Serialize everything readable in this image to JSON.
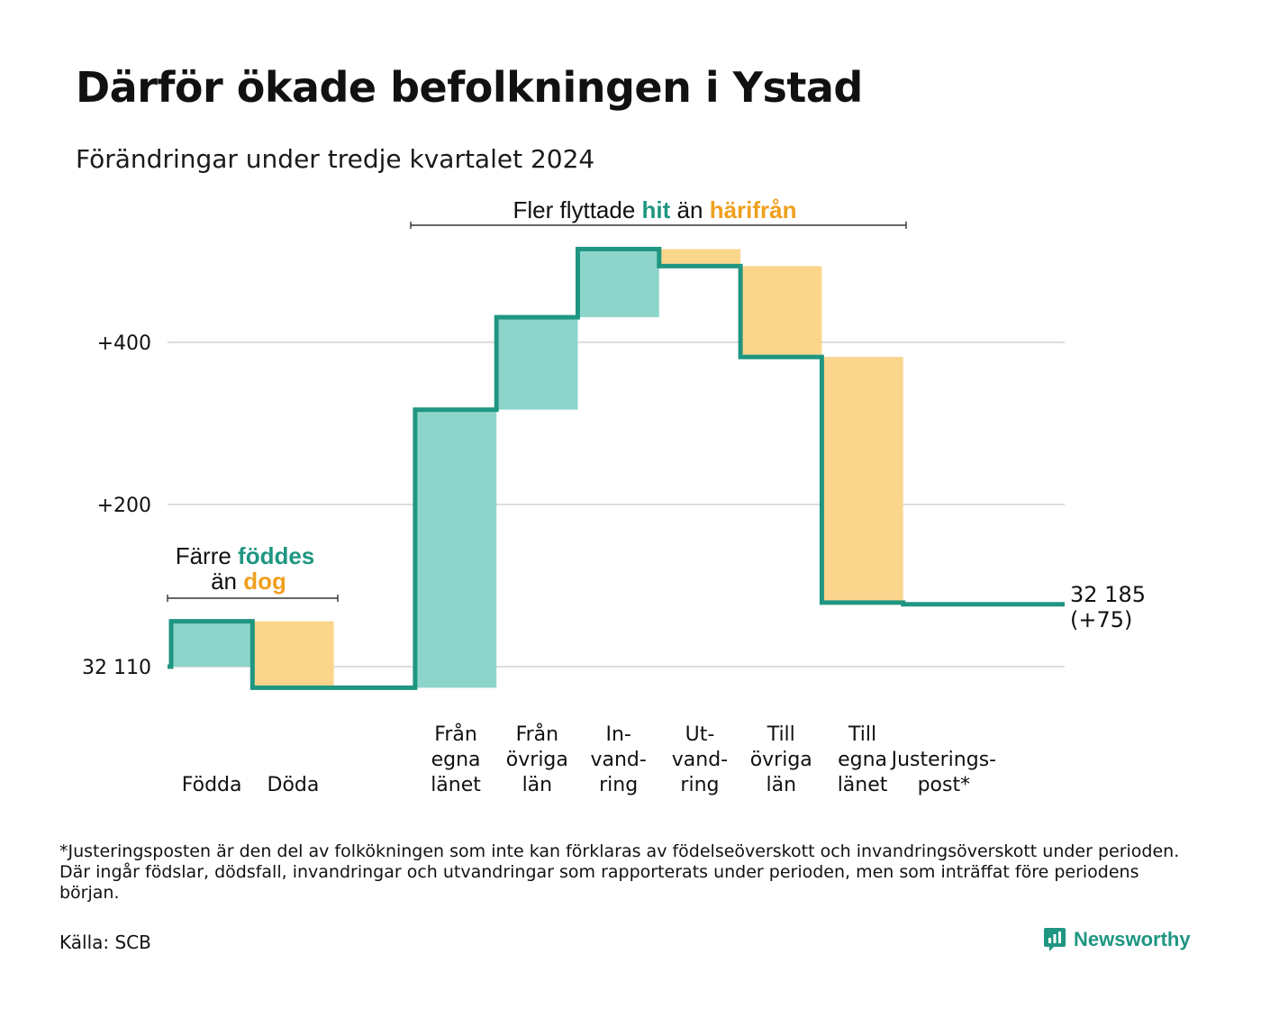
{
  "chart_data": {
    "type": "bar",
    "subtype": "waterfall",
    "title": "Därför ökade befolkningen i Ystad",
    "subtitle": "Förändringar under tredje kvartalet 2024",
    "baseline_label": "32 110",
    "ytick_labels": [
      "32 110",
      "+200",
      "+400"
    ],
    "yticks": [
      0,
      200,
      400
    ],
    "ylim": [
      -60,
      520
    ],
    "grid": true,
    "steps": [
      {
        "label_lines": [
          "Födda"
        ],
        "delta": 56,
        "kind": "pos"
      },
      {
        "label_lines": [
          "Döda"
        ],
        "delta": -82,
        "kind": "neg"
      },
      {
        "label_lines": [
          ""
        ],
        "delta": 0,
        "kind": "gap"
      },
      {
        "label_lines": [
          "Från",
          "egna",
          "länet"
        ],
        "delta": 343,
        "kind": "pos"
      },
      {
        "label_lines": [
          "Från",
          "övriga",
          "län"
        ],
        "delta": 114,
        "kind": "pos"
      },
      {
        "label_lines": [
          "In-",
          "vand-",
          "ring"
        ],
        "delta": 84,
        "kind": "pos"
      },
      {
        "label_lines": [
          "Ut-",
          "vand-",
          "ring"
        ],
        "delta": -21,
        "kind": "neg"
      },
      {
        "label_lines": [
          "Till",
          "övriga",
          "län"
        ],
        "delta": -112,
        "kind": "neg"
      },
      {
        "label_lines": [
          "Till",
          "egna",
          "länet"
        ],
        "delta": -303,
        "kind": "neg"
      },
      {
        "label_lines": [
          "Justerings-",
          "post*"
        ],
        "delta": -2,
        "kind": "adj"
      }
    ],
    "end_label": [
      "32 185",
      "(+75)"
    ],
    "annotations": {
      "migration": {
        "parts": [
          "Fler flyttade ",
          "hit",
          " än ",
          "härifrån"
        ]
      },
      "births": {
        "line1": [
          "Färre ",
          "föddes"
        ],
        "line2": [
          "än ",
          "dog"
        ]
      }
    },
    "colors": {
      "positive_fill": "#8dd5cb",
      "negative_fill": "#fad58c",
      "line": "#1f9682",
      "grid": "#dddddd",
      "positive_text": "#1f9682",
      "negative_text": "#f0a01e"
    }
  },
  "footnote": "*Justeringsposten är den del av folkökningen som inte kan förklaras av födelseöverskott och invandringsöverskott under perioden. Där ingår födslar, dödsfall, invandringar och utvandringar som rapporterats under perioden, men som inträffat före periodens början.",
  "source": "Källa: SCB",
  "brand": {
    "name": "Newsworthy",
    "icon": "newsworthy-logo-icon"
  }
}
